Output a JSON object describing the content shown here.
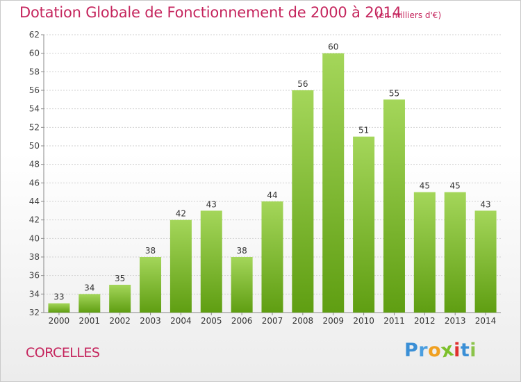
{
  "title": "Dotation Globale de Fonctionnement de 2000 à 2014",
  "units": "(en milliers d'€)",
  "commune": "CORCELLES",
  "logo": {
    "letters": [
      "P",
      "r",
      "o",
      "x",
      "i",
      "t",
      "i"
    ],
    "colors": [
      "#3a8fd6",
      "#4a9ee0",
      "#f0a020",
      "#7cc02a",
      "#e0302f",
      "#3a8fd6",
      "#8bc34a"
    ]
  },
  "colors": {
    "accent": "#c5255d",
    "bar_light": "#a4d65a",
    "bar_dark": "#5f9e12",
    "grid": "#d0d0d0",
    "axis": "#888888"
  },
  "chart_data": {
    "type": "bar",
    "title": "Dotation Globale de Fonctionnement de 2000 à 2014",
    "xlabel": "",
    "ylabel": "",
    "categories": [
      "2000",
      "2001",
      "2002",
      "2003",
      "2004",
      "2005",
      "2006",
      "2007",
      "2008",
      "2009",
      "2010",
      "2011",
      "2012",
      "2013",
      "2014"
    ],
    "values": [
      33,
      34,
      35,
      38,
      42,
      43,
      38,
      44,
      56,
      60,
      51,
      55,
      45,
      45,
      43
    ],
    "ylim": [
      32,
      62
    ],
    "yticks": [
      32,
      34,
      36,
      38,
      40,
      42,
      44,
      46,
      48,
      50,
      52,
      54,
      56,
      58,
      60,
      62
    ],
    "grid": true,
    "data_labels": true
  }
}
